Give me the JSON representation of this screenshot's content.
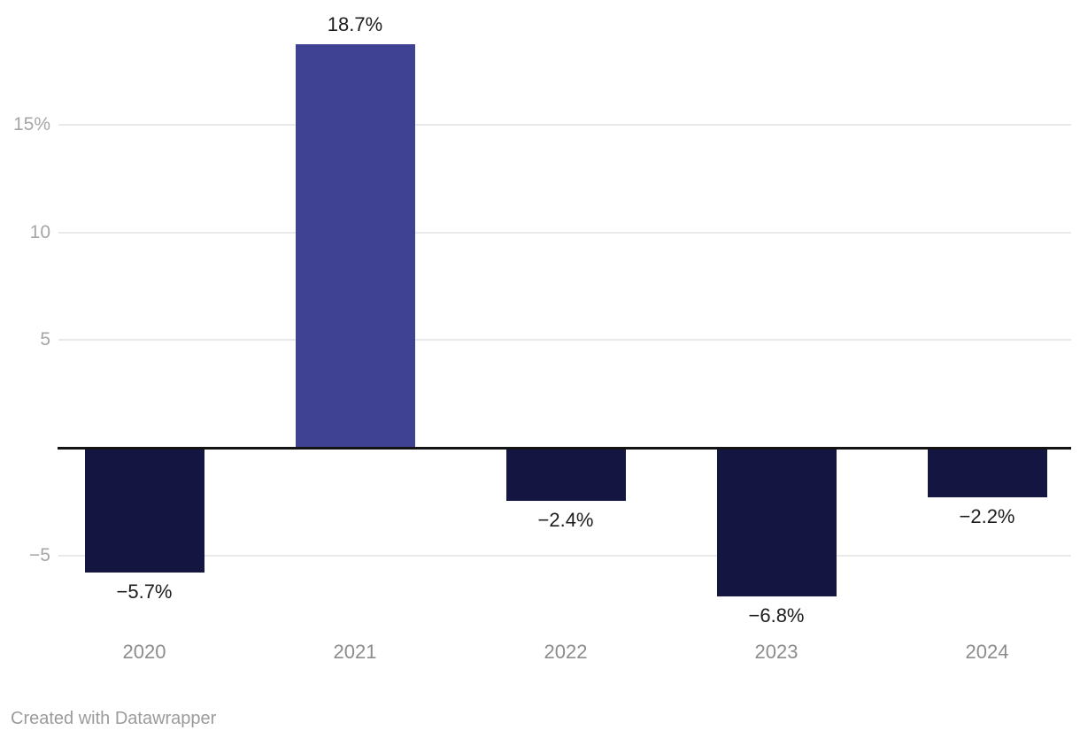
{
  "chart_data": {
    "type": "bar",
    "categories": [
      "2020",
      "2021",
      "2022",
      "2023",
      "2024"
    ],
    "values": [
      -5.7,
      18.7,
      -2.4,
      -6.8,
      -2.2
    ],
    "value_labels": [
      "−5.7%",
      "18.7%",
      "−2.4%",
      "−6.8%",
      "−2.2%"
    ],
    "title": "",
    "xlabel": "",
    "ylabel": "",
    "ylim": [
      -8.5,
      20.8
    ],
    "y_ticks": [
      {
        "value": 15,
        "label": "15%"
      },
      {
        "value": 10,
        "label": "10"
      },
      {
        "value": 5,
        "label": "5"
      },
      {
        "value": -5,
        "label": "−5"
      }
    ],
    "grid": true,
    "legend": "none",
    "baseline_value": 0,
    "colors": {
      "positive_bar": "#3f4193",
      "negative_bar": "#141540",
      "baseline": "#141414",
      "gridline": "#e9e9e9",
      "y_tick_text": "#a6a6a6",
      "x_tick_text": "#8c8c8c",
      "value_label_text": "#1d1d1d"
    }
  },
  "footer": {
    "attribution": "Created with Datawrapper"
  }
}
